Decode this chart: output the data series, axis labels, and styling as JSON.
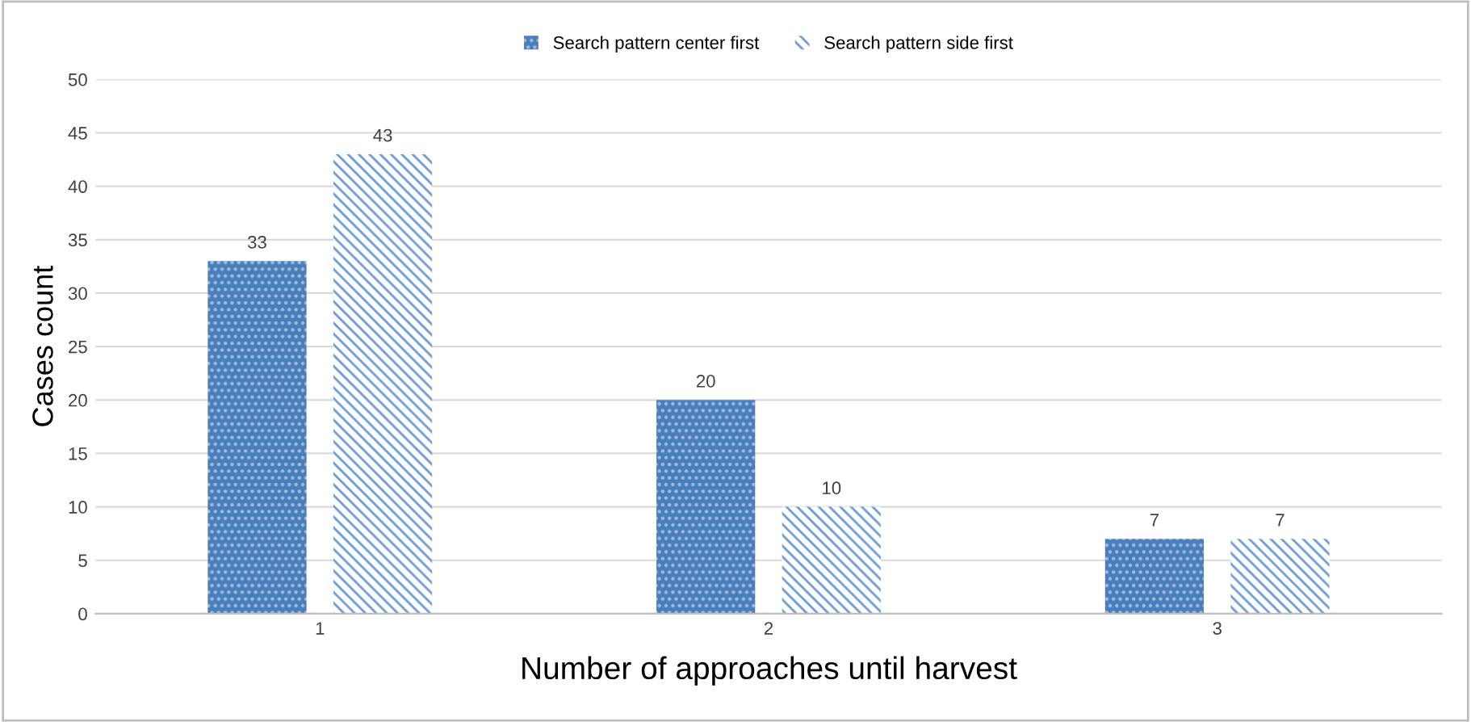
{
  "chart_data": {
    "type": "bar",
    "xlabel": "Number of approaches until harvest",
    "ylabel": "Cases count",
    "categories": [
      "1",
      "2",
      "3"
    ],
    "series": [
      {
        "name": "Search pattern center first",
        "color": "#4a7ebb",
        "values": [
          33,
          20,
          7
        ]
      },
      {
        "name": "Search pattern side first",
        "color": "#6a9ad4",
        "values": [
          43,
          10,
          7
        ]
      }
    ],
    "ylim": [
      0,
      50
    ],
    "yticks": [
      0,
      5,
      10,
      15,
      20,
      25,
      30,
      35,
      40,
      45,
      50
    ],
    "grid": "y",
    "legend": "top",
    "data_labels": true
  }
}
